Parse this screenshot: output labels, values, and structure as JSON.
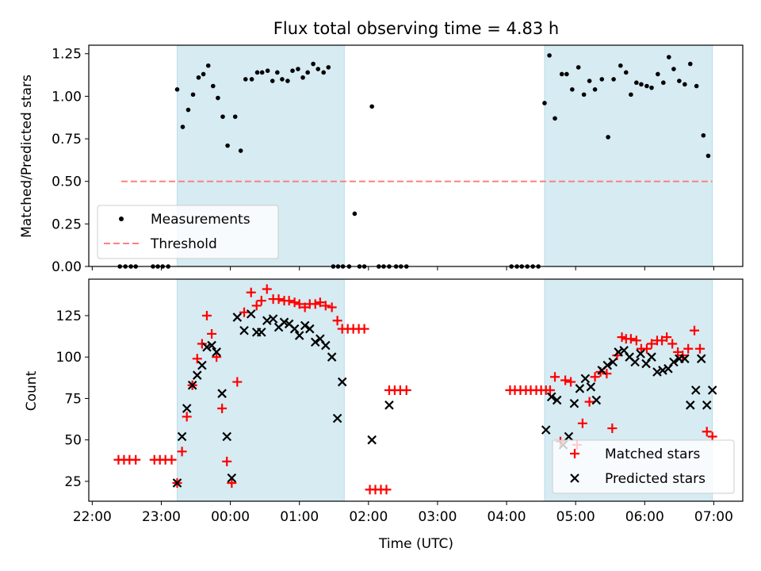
{
  "chart_data": [
    {
      "type": "scatter",
      "title": "Flux total observing time = 4.83 h",
      "xlabel": "",
      "ylabel": "Matched/Predicted stars",
      "xlim": [
        -2.05,
        7.42
      ],
      "ylim": [
        0,
        1.3
      ],
      "ticks_y": [
        "0.00",
        "0.25",
        "0.50",
        "0.75",
        "1.00",
        "1.25"
      ],
      "tick_values_y": [
        0,
        0.25,
        0.5,
        0.75,
        1.0,
        1.25
      ],
      "tick_values_x": [
        -2,
        -1,
        0,
        1,
        2,
        3,
        4,
        5,
        6,
        7
      ],
      "shaded_ranges": [
        [
          -0.77,
          1.65
        ],
        [
          4.55,
          6.98
        ]
      ],
      "threshold": {
        "name": "Threshold",
        "value": 0.5,
        "x_range": [
          -1.58,
          6.98
        ],
        "color": "#ff8080"
      },
      "legend": [
        "Measurements",
        "Threshold"
      ],
      "legend_position": "lower-left",
      "series": [
        {
          "name": "Measurements",
          "color": "#000000",
          "x": [
            -1.6,
            -1.52,
            -1.44,
            -1.37,
            -1.12,
            -1.05,
            -0.98,
            -0.9,
            -0.77,
            -0.69,
            -0.61,
            -0.54,
            -0.46,
            -0.39,
            -0.32,
            -0.25,
            -0.18,
            -0.11,
            -0.04,
            0.07,
            0.15,
            0.22,
            0.31,
            0.39,
            0.46,
            0.54,
            0.61,
            0.68,
            0.75,
            0.83,
            0.9,
            0.98,
            1.05,
            1.12,
            1.2,
            1.27,
            1.35,
            1.42,
            1.49,
            1.56,
            1.63,
            1.72,
            1.8,
            1.87,
            1.94,
            2.05,
            2.15,
            2.22,
            2.3,
            2.4,
            2.47,
            2.55,
            4.07,
            4.15,
            4.22,
            4.3,
            4.38,
            4.46,
            4.55,
            4.62,
            4.7,
            4.8,
            4.87,
            4.95,
            5.04,
            5.12,
            5.2,
            5.28,
            5.38,
            5.47,
            5.55,
            5.65,
            5.73,
            5.8,
            5.88,
            5.95,
            6.03,
            6.1,
            6.19,
            6.27,
            6.35,
            6.42,
            6.5,
            6.58,
            6.66,
            6.75,
            6.85,
            6.92
          ],
          "y": [
            0,
            0,
            0,
            0,
            0,
            0,
            0,
            0,
            1.04,
            0.82,
            0.92,
            1.01,
            1.11,
            1.13,
            1.18,
            1.06,
            0.99,
            0.88,
            0.71,
            0.88,
            0.68,
            1.1,
            1.1,
            1.14,
            1.14,
            1.15,
            1.09,
            1.14,
            1.1,
            1.09,
            1.15,
            1.16,
            1.11,
            1.14,
            1.19,
            1.16,
            1.14,
            1.17,
            0,
            0,
            0,
            0,
            0.31,
            0,
            0,
            0.94,
            0,
            0,
            0,
            0,
            0,
            0,
            0,
            0,
            0,
            0,
            0,
            0,
            0.96,
            1.24,
            0.87,
            1.13,
            1.13,
            1.04,
            1.17,
            1.01,
            1.09,
            1.04,
            1.1,
            0.76,
            1.1,
            1.18,
            1.14,
            1.01,
            1.08,
            1.07,
            1.06,
            1.05,
            1.13,
            1.08,
            1.23,
            1.16,
            1.09,
            1.07,
            1.19,
            1.06,
            0.77,
            0.65
          ]
        }
      ]
    },
    {
      "type": "scatter",
      "title": "",
      "xlabel": "Time (UTC)",
      "ylabel": "Count",
      "xlim": [
        -2.05,
        7.42
      ],
      "ylim": [
        13,
        147
      ],
      "ticks_y": [
        "25",
        "50",
        "75",
        "100",
        "125"
      ],
      "tick_values_y": [
        25,
        50,
        75,
        100,
        125
      ],
      "tick_values_x": [
        -2,
        -1,
        0,
        1,
        2,
        3,
        4,
        5,
        6,
        7
      ],
      "ticks_x": [
        "22:00",
        "23:00",
        "00:00",
        "01:00",
        "02:00",
        "03:00",
        "04:00",
        "05:00",
        "06:00",
        "07:00"
      ],
      "shaded_ranges": [
        [
          -0.77,
          1.65
        ],
        [
          4.55,
          6.98
        ]
      ],
      "legend": [
        "Matched stars",
        "Predicted stars"
      ],
      "legend_position": "lower-right",
      "series": [
        {
          "name": "Matched stars",
          "marker": "plus",
          "color": "#ff0000",
          "x": [
            -1.62,
            -1.54,
            -1.46,
            -1.37,
            -1.1,
            -1.02,
            -0.94,
            -0.85,
            -0.77,
            -0.7,
            -0.63,
            -0.55,
            -0.48,
            -0.41,
            -0.34,
            -0.27,
            -0.2,
            -0.12,
            -0.05,
            0.02,
            0.1,
            0.2,
            0.3,
            0.38,
            0.45,
            0.53,
            0.62,
            0.7,
            0.78,
            0.85,
            0.93,
            1.0,
            1.08,
            1.15,
            1.23,
            1.3,
            1.38,
            1.47,
            1.55,
            1.62,
            1.7,
            1.78,
            1.86,
            1.94,
            2.02,
            2.1,
            2.18,
            2.26,
            2.3,
            2.38,
            2.46,
            2.55,
            4.05,
            4.12,
            4.2,
            4.28,
            4.35,
            4.43,
            4.5,
            4.57,
            4.63,
            4.7,
            4.78,
            4.85,
            4.93,
            5.02,
            5.1,
            5.2,
            5.28,
            5.36,
            5.45,
            5.53,
            5.6,
            5.67,
            5.73,
            5.8,
            5.88,
            5.95,
            6.03,
            6.1,
            6.18,
            6.25,
            6.32,
            6.4,
            6.48,
            6.55,
            6.63,
            6.72,
            6.8,
            6.9,
            6.98
          ],
          "y": [
            38,
            38,
            38,
            38,
            38,
            38,
            38,
            38,
            24,
            43,
            64,
            83,
            99,
            108,
            125,
            114,
            100,
            69,
            37,
            24,
            85,
            127,
            139,
            131,
            134,
            141,
            135,
            135,
            134,
            134,
            133,
            132,
            130,
            132,
            132,
            133,
            131,
            130,
            122,
            117,
            117,
            117,
            117,
            117,
            20,
            20,
            20,
            20,
            80,
            80,
            80,
            80,
            80,
            80,
            80,
            80,
            80,
            80,
            80,
            80,
            80,
            88,
            49,
            86,
            85,
            47,
            60,
            73,
            88,
            91,
            90,
            57,
            101,
            112,
            111,
            111,
            110,
            105,
            105,
            108,
            110,
            110,
            112,
            108,
            103,
            101,
            105,
            116,
            105,
            55,
            52
          ]
        },
        {
          "name": "Predicted stars",
          "marker": "x",
          "color": "#000000",
          "x": [
            -0.77,
            -0.7,
            -0.63,
            -0.55,
            -0.48,
            -0.41,
            -0.34,
            -0.27,
            -0.2,
            -0.12,
            -0.05,
            0.02,
            0.1,
            0.2,
            0.3,
            0.38,
            0.45,
            0.53,
            0.62,
            0.7,
            0.78,
            0.85,
            0.93,
            1.0,
            1.08,
            1.15,
            1.23,
            1.3,
            1.38,
            1.47,
            1.55,
            1.62,
            2.05,
            2.3,
            4.57,
            4.65,
            4.73,
            4.82,
            4.9,
            4.98,
            5.06,
            5.14,
            5.22,
            5.3,
            5.38,
            5.46,
            5.54,
            5.62,
            5.7,
            5.78,
            5.86,
            5.94,
            6.02,
            6.1,
            6.18,
            6.26,
            6.34,
            6.42,
            6.5,
            6.58,
            6.66,
            6.74,
            6.82,
            6.9,
            6.98
          ],
          "y": [
            24,
            52,
            69,
            83,
            89,
            95,
            106,
            107,
            103,
            78,
            52,
            27,
            124,
            116,
            126,
            115,
            115,
            122,
            123,
            118,
            121,
            120,
            117,
            113,
            119,
            117,
            109,
            111,
            107,
            100,
            63,
            85,
            50,
            71,
            56,
            76,
            74,
            47,
            52,
            72,
            81,
            87,
            82,
            74,
            92,
            95,
            97,
            103,
            104,
            100,
            97,
            102,
            96,
            100,
            91,
            92,
            93,
            97,
            99,
            99,
            71,
            80,
            99,
            71,
            80
          ]
        }
      ]
    }
  ]
}
